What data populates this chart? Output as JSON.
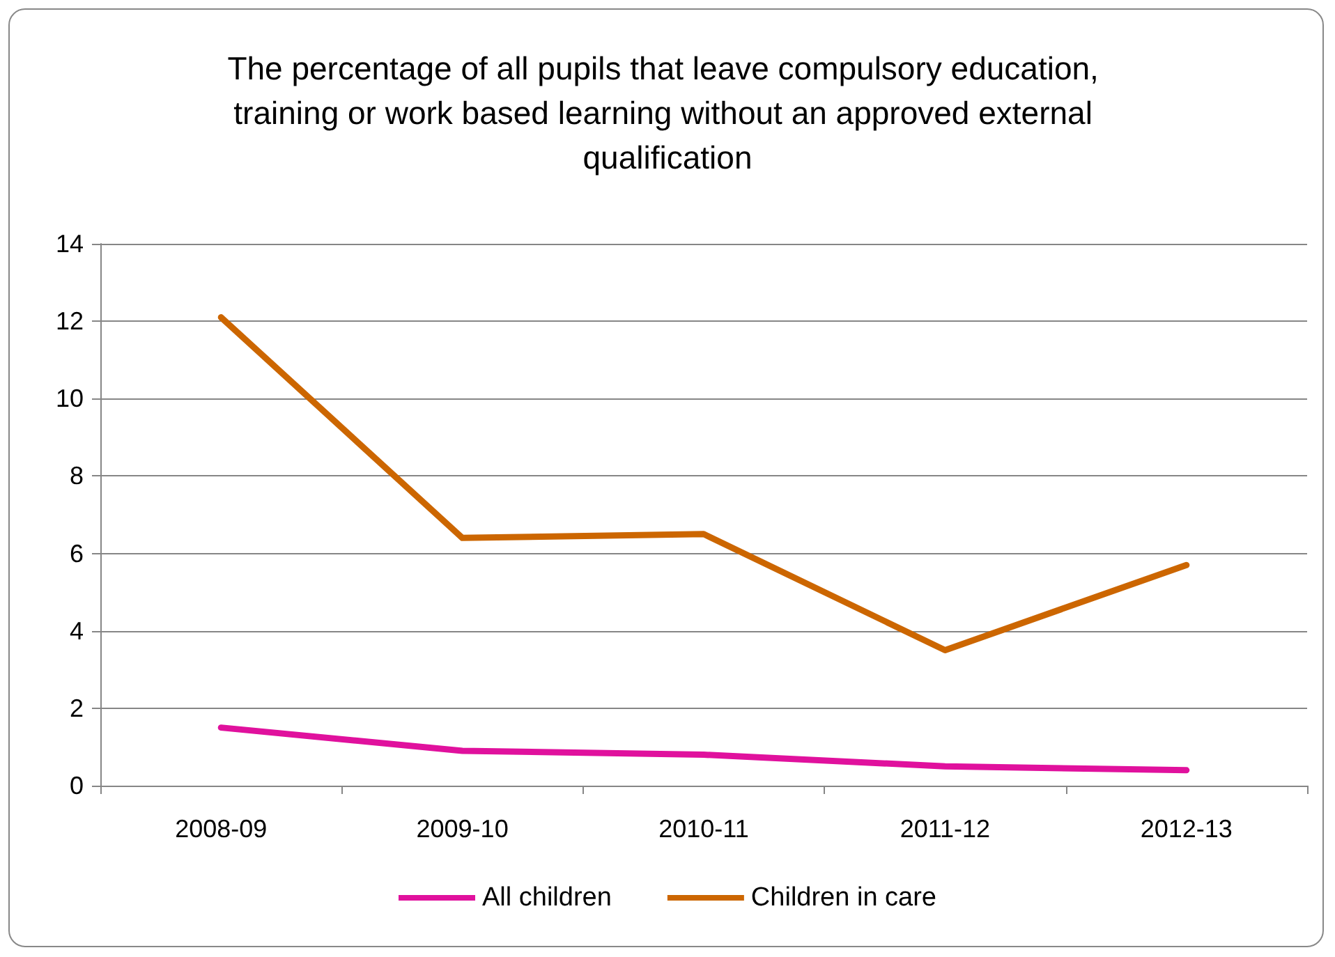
{
  "chart_data": {
    "type": "line",
    "title": "The percentage of all pupils that leave compulsory education, training or work based learning without an approved external qualification",
    "categories": [
      "2008-09",
      "2009-10",
      "2010-11",
      "2011-12",
      "2012-13"
    ],
    "series": [
      {
        "name": "All children",
        "color": "#e0119d",
        "values": [
          1.5,
          0.9,
          0.8,
          0.5,
          0.4
        ]
      },
      {
        "name": "Children in care",
        "color": "#cc6600",
        "values": [
          12.1,
          6.4,
          6.5,
          3.5,
          5.7
        ]
      }
    ],
    "ylim": [
      0,
      14
    ],
    "yticks": [
      0,
      2,
      4,
      6,
      8,
      10,
      12,
      14
    ],
    "grid": "y",
    "legend": "bottom",
    "marker": "none",
    "line_style": "solid"
  }
}
